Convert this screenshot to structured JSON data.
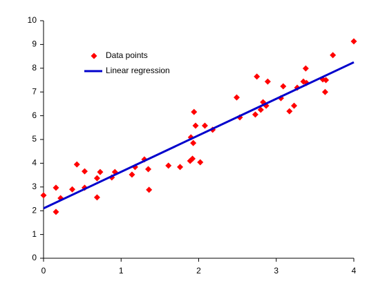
{
  "chart_data": {
    "type": "scatter",
    "series": [
      {
        "name": "Data points",
        "color": "#ff0000",
        "marker": "diamond",
        "x": [
          0,
          0.16,
          0.16,
          0.22,
          0.37,
          0.43,
          0.53,
          0.53,
          0.69,
          0.69,
          0.73,
          0.88,
          0.92,
          1.14,
          1.18,
          1.3,
          1.35,
          1.36,
          1.61,
          1.76,
          1.89,
          1.9,
          1.92,
          1.93,
          1.94,
          1.96,
          2.02,
          2.08,
          2.18,
          2.49,
          2.53,
          2.73,
          2.75,
          2.8,
          2.83,
          2.87,
          2.89,
          3.06,
          3.09,
          3.17,
          3.23,
          3.27,
          3.35,
          3.38,
          3.39,
          3.6,
          3.63,
          3.64,
          3.73,
          4
        ],
        "values": [
          2.65,
          1.95,
          2.97,
          2.53,
          2.9,
          3.95,
          2.97,
          3.66,
          2.56,
          3.37,
          3.63,
          3.4,
          3.63,
          3.52,
          3.84,
          4.16,
          3.75,
          2.88,
          3.9,
          3.84,
          4.1,
          5.09,
          4.19,
          4.85,
          6.16,
          5.58,
          4.04,
          5.58,
          5.41,
          6.77,
          5.93,
          6.05,
          7.65,
          6.25,
          6.57,
          6.42,
          7.44,
          6.74,
          7.24,
          6.19,
          6.42,
          7.18,
          7.44,
          7.99,
          7.38,
          7.53,
          7.0,
          7.5,
          8.55,
          9.13
        ]
      },
      {
        "name": "Linear regression",
        "color": "#0000cc",
        "marker": "line",
        "x": [
          0,
          4
        ],
        "values": [
          2.1,
          8.25
        ]
      }
    ],
    "xlim": [
      0,
      4
    ],
    "ylim": [
      0,
      10
    ],
    "xticks": [
      0,
      1,
      2,
      3,
      4
    ],
    "yticks": [
      0,
      1,
      2,
      3,
      4,
      5,
      6,
      7,
      8,
      9,
      10
    ],
    "legend": "upper left"
  }
}
